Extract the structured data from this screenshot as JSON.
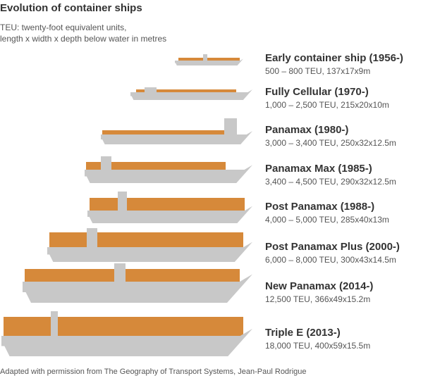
{
  "header": {
    "title": "Evolution of container ships",
    "subtitle_lines": [
      "TEU: twenty-foot equivalent units,",
      "length x width x depth below water in metres"
    ]
  },
  "ships": [
    {
      "name": "Early container ship (1956-)",
      "spec": "500 – 800 TEU, 137x17x9m"
    },
    {
      "name": "Fully Cellular (1970-)",
      "spec": "1,000 – 2,500 TEU, 215x20x10m"
    },
    {
      "name": "Panamax (1980-)",
      "spec": "3,000 – 3,400 TEU, 250x32x12.5m"
    },
    {
      "name": "Panamax Max (1985-)",
      "spec": "3,400 – 4,500 TEU, 290x32x12.5m"
    },
    {
      "name": "Post Panamax (1988-)",
      "spec": "4,000 – 5,000 TEU, 285x40x13m"
    },
    {
      "name": "Post Panamax Plus (2000-)",
      "spec": "6,000 – 8,000 TEU, 300x43x14.5m"
    },
    {
      "name": "New Panamax (2014-)",
      "spec": "12,500 TEU, 366x49x15.2m"
    },
    {
      "name": "Triple E (2013-)",
      "spec": "18,000 TEU, 400x59x15.5m"
    }
  ],
  "source": "Adapted with permission from The Geography of Transport Systems, Jean-Paul Rodrigue"
}
